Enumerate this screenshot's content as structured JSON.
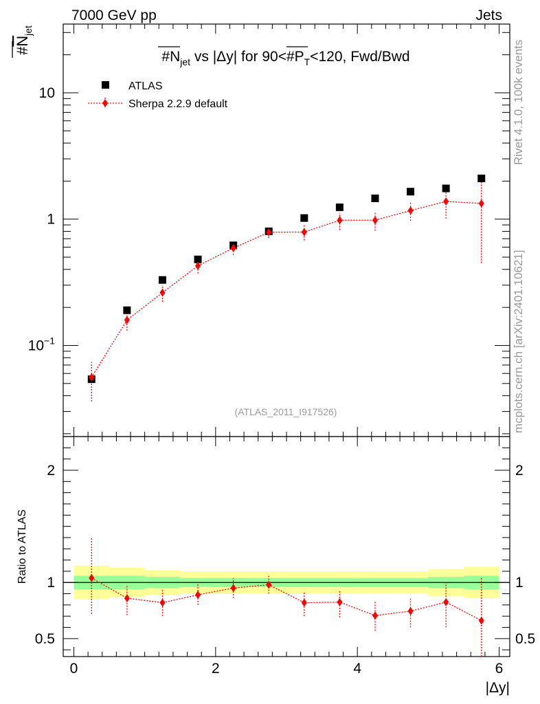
{
  "header": {
    "left_label": "7000 GeV pp",
    "right_label": "Jets"
  },
  "side": {
    "rivet_label": "Rivet 4.1.0,  100k events",
    "mcplots_label": "mcplots.cern.ch [arXiv:2401.10621]"
  },
  "colors": {
    "data": "#000000",
    "mc": "#ff0000",
    "band_inner": "#99ff99",
    "band_outer": "#ffff99",
    "watermark": "#999999"
  },
  "chart_data": [
    {
      "type": "scatter",
      "panel": "main",
      "title": "#N̅jet vs |Δy| for 90<#P̅T<120, Fwd/Bwd",
      "title_parts": {
        "hash1": "#",
        "n": "N",
        "jet_sub": "jet",
        "mid": " vs |Δy| for 90<#",
        "p": "P",
        "t_sub": "T",
        "end": "<120, Fwd/Bwd"
      },
      "ylabel_parts": {
        "hash": "#",
        "n": "N",
        "sub": "jet"
      },
      "yscale": "log",
      "ylim": [
        0.019,
        35
      ],
      "xlim": [
        -0.15,
        6.15
      ],
      "y_ticks": [
        {
          "value": 0.1,
          "base": "10",
          "exp": "−1"
        },
        {
          "value": 1,
          "label": "1"
        },
        {
          "value": 10,
          "label": "10"
        }
      ],
      "watermark": "(ATLAS_2011_I917526)",
      "legend": [
        {
          "name": "ATLAS",
          "marker": "square"
        },
        {
          "name": "Sherpa 2.2.9 default",
          "marker": "diamond"
        }
      ],
      "x": [
        0.25,
        0.75,
        1.25,
        1.75,
        2.25,
        2.75,
        3.25,
        3.75,
        4.25,
        4.75,
        5.25,
        5.75
      ],
      "series": [
        {
          "name": "ATLAS",
          "values": [
            0.054,
            0.19,
            0.33,
            0.48,
            0.62,
            0.8,
            1.02,
            1.24,
            1.46,
            1.65,
            1.75,
            2.1
          ]
        },
        {
          "name": "Sherpa 2.2.9 default",
          "values": [
            0.056,
            0.159,
            0.262,
            0.427,
            0.59,
            0.787,
            0.79,
            0.98,
            0.98,
            1.17,
            1.38,
            1.33
          ],
          "err_low": [
            0.036,
            0.131,
            0.222,
            0.372,
            0.52,
            0.71,
            0.68,
            0.82,
            0.81,
            0.97,
            1.01,
            0.45
          ],
          "err_high": [
            0.074,
            0.186,
            0.302,
            0.48,
            0.66,
            0.86,
            0.9,
            1.12,
            1.14,
            1.35,
            1.63,
            2.05
          ]
        }
      ]
    },
    {
      "type": "scatter",
      "panel": "ratio",
      "ylabel": "Ratio to ATLAS",
      "xlabel": "|Δy|",
      "ylim": [
        0.34,
        2.3
      ],
      "xlim": [
        -0.15,
        6.15
      ],
      "x_ticks": [
        0,
        2,
        4,
        6
      ],
      "y_ticks": [
        0.5,
        1,
        2
      ],
      "x_bins": [
        0,
        0.5,
        1.0,
        1.5,
        2.0,
        2.5,
        3.0,
        3.5,
        4.0,
        4.5,
        5.0,
        5.5,
        6.0
      ],
      "band_inner": {
        "low": [
          0.94,
          0.94,
          0.95,
          0.96,
          0.96,
          0.96,
          0.96,
          0.96,
          0.96,
          0.96,
          0.95,
          0.94
        ],
        "high": [
          1.06,
          1.06,
          1.05,
          1.04,
          1.04,
          1.04,
          1.04,
          1.04,
          1.04,
          1.04,
          1.05,
          1.06
        ]
      },
      "band_outer": {
        "low": [
          0.85,
          0.87,
          0.89,
          0.9,
          0.9,
          0.9,
          0.9,
          0.9,
          0.9,
          0.9,
          0.88,
          0.86
        ],
        "high": [
          1.15,
          1.13,
          1.11,
          1.1,
          1.1,
          1.1,
          1.1,
          1.1,
          1.1,
          1.1,
          1.12,
          1.14
        ]
      },
      "x": [
        0.25,
        0.75,
        1.25,
        1.75,
        2.25,
        2.75,
        3.25,
        3.75,
        4.25,
        4.75,
        5.25,
        5.75
      ],
      "series": [
        {
          "name": "Sherpa 2.2.9 default",
          "values": [
            1.04,
            0.86,
            0.82,
            0.89,
            0.95,
            0.98,
            0.82,
            0.825,
            0.705,
            0.745,
            0.825,
            0.66
          ],
          "err_low": [
            0.72,
            0.71,
            0.7,
            0.8,
            0.86,
            0.9,
            0.7,
            0.69,
            0.57,
            0.6,
            0.6,
            0.34
          ],
          "err_high": [
            1.4,
            0.98,
            0.93,
            0.99,
            1.04,
            1.07,
            0.92,
            0.93,
            0.83,
            0.86,
            1.0,
            1.05
          ]
        }
      ]
    }
  ]
}
